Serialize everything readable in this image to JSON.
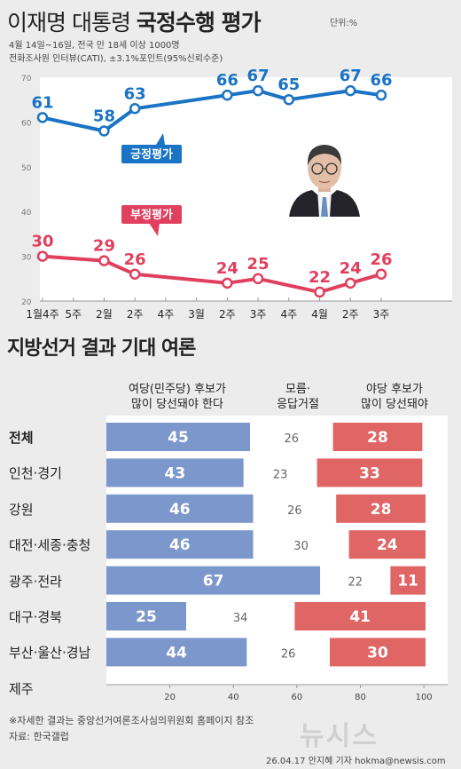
{
  "header": {
    "title_light": "이재명 대통령",
    "title_bold": "국정수행 평가",
    "unit": "단위:%",
    "note_line1": "4월 14일~16일, 전국 만 18세 이상 1000명",
    "note_line2": "전화조사원 인터뷰(CATI), ±3.1%포인트(95%신뢰수준)"
  },
  "chart_data": [
    {
      "type": "line",
      "x": [
        "1월4주",
        "5주",
        "2월",
        "2주",
        "4주",
        "3월",
        "2주",
        "3주",
        "4주",
        "4월",
        "2주",
        "3주"
      ],
      "series": [
        {
          "name": "긍정평가",
          "color": "#1a73c4",
          "values": [
            61,
            null,
            58,
            63,
            null,
            null,
            66,
            67,
            65,
            null,
            67,
            66
          ]
        },
        {
          "name": "부정평가",
          "color": "#e0405e",
          "values": [
            30,
            null,
            29,
            26,
            null,
            null,
            24,
            25,
            null,
            22,
            24,
            26
          ]
        }
      ],
      "y_ticks": [
        20,
        30,
        40,
        50,
        60,
        70
      ],
      "ylim": [
        20,
        70
      ]
    },
    {
      "type": "bar",
      "title": "지방선거 결과 기대 여론",
      "series": [
        {
          "name": "여당(민주당) 후보가 많이 당선돼야 한다",
          "color": "#7c97cc"
        },
        {
          "name": "모름·응답거절",
          "color": "#ffffff"
        },
        {
          "name": "야당 후보가 많이 당선돼야",
          "color": "#e06666"
        }
      ],
      "categories": [
        "전체",
        "인천·경기",
        "강원",
        "대전·세종·충청",
        "광주·전라",
        "대구·경북",
        "부산·울산·경남",
        "제주"
      ],
      "rows": [
        {
          "label": "전체",
          "bold": true,
          "values": [
            45,
            26,
            28
          ]
        },
        {
          "label": "인천·경기",
          "values": [
            43,
            23,
            33
          ]
        },
        {
          "label": "강원",
          "values": [
            46,
            26,
            28
          ]
        },
        {
          "label": "대전·세종·충청",
          "values": [
            46,
            30,
            24
          ]
        },
        {
          "label": "광주·전라",
          "values": [
            67,
            22,
            11
          ]
        },
        {
          "label": "대구·경북",
          "values": [
            25,
            34,
            41
          ]
        },
        {
          "label": "부산·울산·경남",
          "values": [
            44,
            26,
            30
          ]
        },
        {
          "label": "제주",
          "values": [
            null,
            null,
            null
          ]
        }
      ],
      "x_ticks": [
        20,
        40,
        60,
        80,
        100
      ],
      "xlim": [
        0,
        100
      ]
    }
  ],
  "colheads": {
    "ruling": [
      "여당(민주당) 후보가",
      "많이 당선돼야 한다"
    ],
    "unknown": [
      "모름·",
      "응답거절"
    ],
    "opposition": [
      "야당 후보가",
      "많이 당선돼야"
    ]
  },
  "footer": {
    "note": "※자세한 결과는 중앙선거여론조사심의위원회 홈페이지 참조",
    "source": "자료: 한국갤럽",
    "credit": "26.04.17 안지혜 기자 hokma@newsis.com",
    "watermark": "뉴시스"
  }
}
